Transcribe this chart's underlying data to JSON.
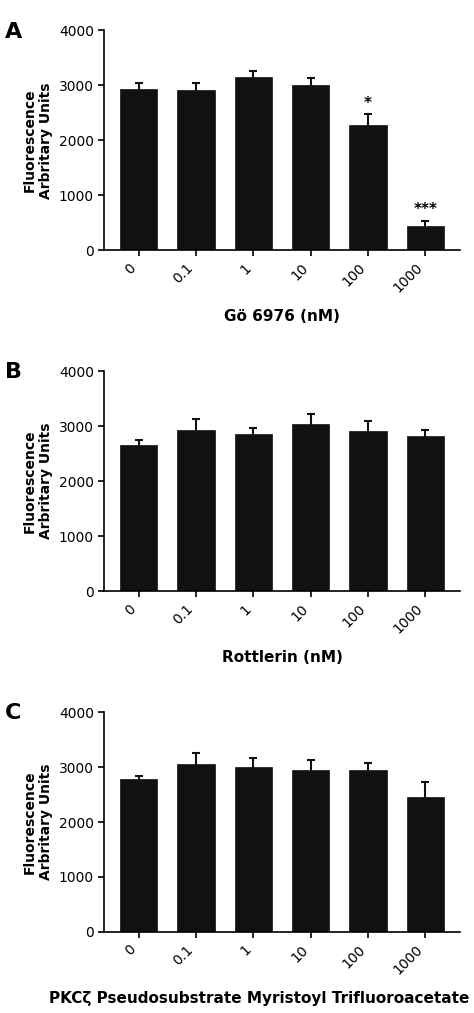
{
  "panels": [
    {
      "label": "A",
      "xlabel": "Gö 6976 (nM)",
      "categories": [
        "0",
        "0.1",
        "1",
        "10",
        "100",
        "1000"
      ],
      "values": [
        2930,
        2910,
        3150,
        3000,
        2280,
        440
      ],
      "errors": [
        120,
        130,
        110,
        140,
        200,
        100
      ],
      "significance": [
        "",
        "",
        "",
        "",
        "*",
        "***"
      ]
    },
    {
      "label": "B",
      "xlabel": "Rottlerin (nM)",
      "categories": [
        "0",
        "0.1",
        "1",
        "10",
        "100",
        "1000"
      ],
      "values": [
        2660,
        2930,
        2860,
        3040,
        2910,
        2820
      ],
      "errors": [
        90,
        210,
        100,
        180,
        190,
        110
      ],
      "significance": [
        "",
        "",
        "",
        "",
        "",
        ""
      ]
    },
    {
      "label": "C",
      "xlabel": "PKCζ Pseudosubstrate Myristoyl Trifluoroacetate (nM)",
      "categories": [
        "0",
        "0.1",
        "1",
        "10",
        "100",
        "1000"
      ],
      "values": [
        2780,
        3060,
        3000,
        2940,
        2950,
        2460
      ],
      "errors": [
        60,
        190,
        160,
        190,
        130,
        270
      ],
      "significance": [
        "",
        "",
        "",
        "",
        "",
        ""
      ]
    }
  ],
  "ylabel": "Fluorescence\nArbritary Units",
  "ylim": [
    0,
    4000
  ],
  "yticks": [
    0,
    1000,
    2000,
    3000,
    4000
  ],
  "bar_color": "#111111",
  "bar_width": 0.65,
  "bar_edge_color": "#111111",
  "error_color": "#111111",
  "error_capsize": 3,
  "error_linewidth": 1.5,
  "sig_fontsize": 11,
  "tick_fontsize": 10,
  "xlabel_fontsize": 11,
  "ylabel_fontsize": 10,
  "panel_label_fontsize": 16,
  "background_color": "#ffffff"
}
